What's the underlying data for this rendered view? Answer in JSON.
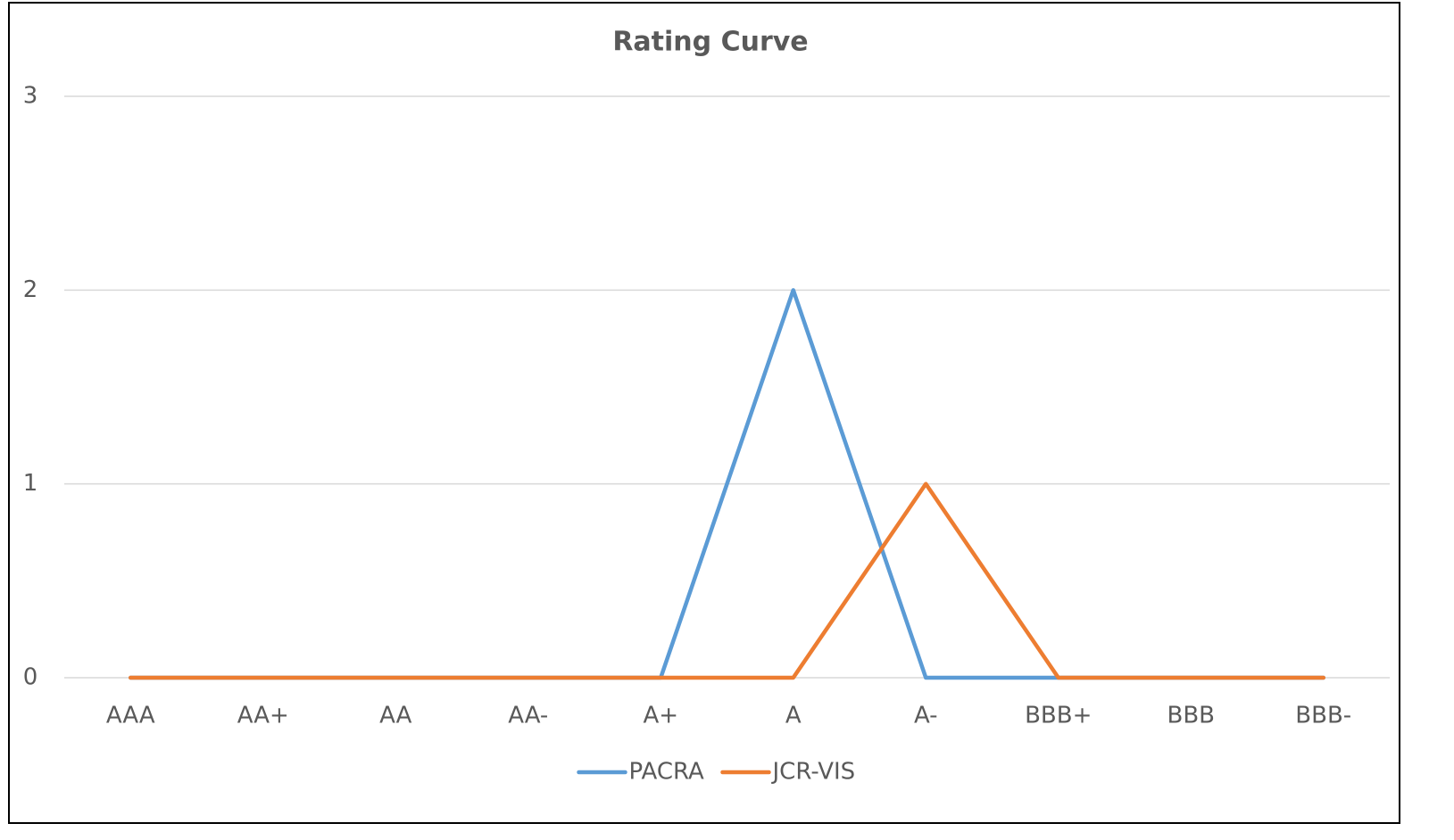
{
  "chart_data": {
    "type": "line",
    "title": "Rating Curve",
    "categories": [
      "AAA",
      "AA+",
      "AA",
      "AA-",
      "A+",
      "A",
      "A-",
      "BBB+",
      "BBB",
      "BBB-"
    ],
    "series": [
      {
        "name": "PACRA",
        "color": "#5b9bd5",
        "values": [
          0,
          0,
          0,
          0,
          0,
          2,
          0,
          0,
          0,
          0
        ]
      },
      {
        "name": "JCR-VIS",
        "color": "#ed7d31",
        "values": [
          0,
          0,
          0,
          0,
          0,
          0,
          1,
          0,
          0,
          0
        ]
      }
    ],
    "ylim": [
      0,
      3
    ],
    "yticks": [
      0,
      1,
      2,
      3
    ],
    "grid": true,
    "legend": "bottom"
  }
}
